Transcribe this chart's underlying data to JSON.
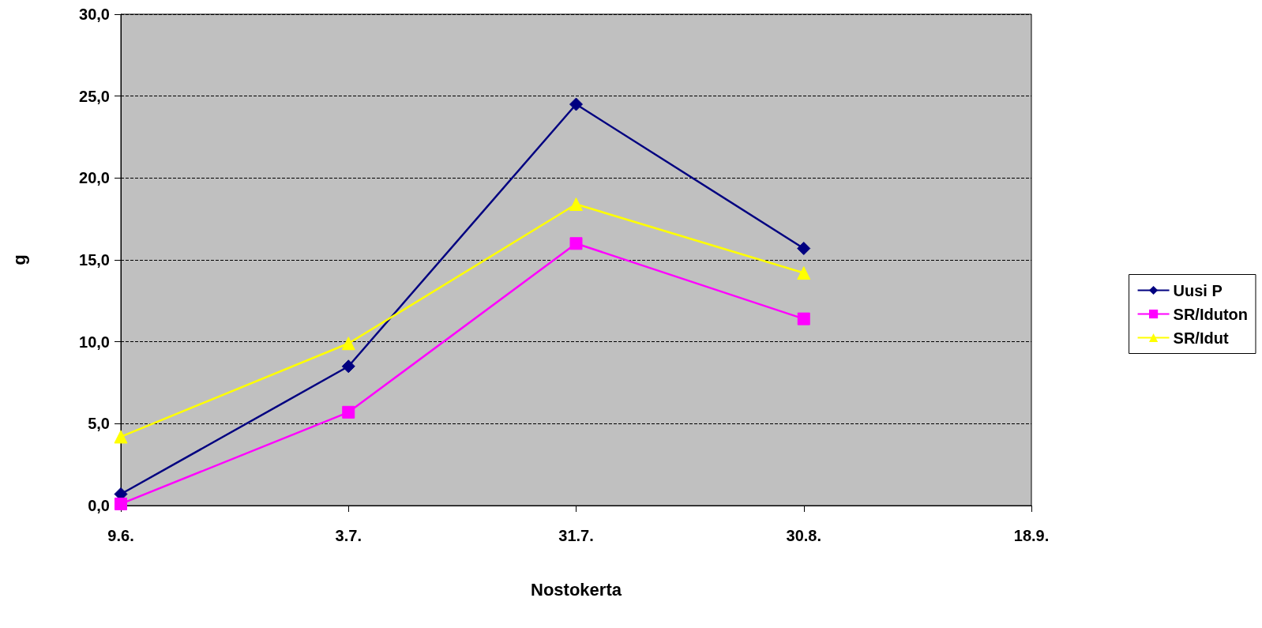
{
  "chart_data": {
    "type": "line",
    "xlabel": "Nostokerta",
    "ylabel": "g",
    "categories": [
      "9.6.",
      "3.7.",
      "31.7.",
      "30.8.",
      "18.9."
    ],
    "series": [
      {
        "name": "Uusi P",
        "color": "#000080",
        "marker": "diamond",
        "values": [
          0.7,
          8.5,
          24.5,
          15.7,
          null
        ]
      },
      {
        "name": "SR/Iduton",
        "color": "#ff00ff",
        "marker": "square",
        "values": [
          0.1,
          5.7,
          16.0,
          11.4,
          null
        ]
      },
      {
        "name": "SR/Idut",
        "color": "#ffff00",
        "marker": "triangle",
        "values": [
          4.2,
          9.9,
          18.4,
          14.2,
          null
        ]
      }
    ],
    "ylim": [
      0,
      30
    ],
    "yticks": [
      {
        "value": 0,
        "label": "0,0"
      },
      {
        "value": 5,
        "label": "5,0"
      },
      {
        "value": 10,
        "label": "10,0"
      },
      {
        "value": 15,
        "label": "15,0"
      },
      {
        "value": 20,
        "label": "20,0"
      },
      {
        "value": 25,
        "label": "25,0"
      },
      {
        "value": 30,
        "label": "30,0"
      }
    ],
    "grid": "y",
    "legend": "right",
    "line_style": "solid"
  }
}
